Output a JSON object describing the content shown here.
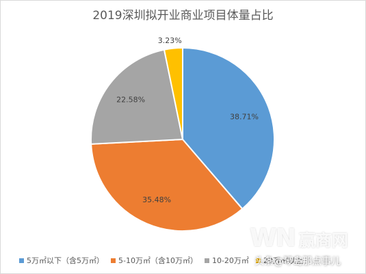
{
  "chart_data": {
    "type": "pie",
    "title": "2019深圳拟开业商业项目体量占比",
    "slices": [
      {
        "label": "5万㎡以下（含5万㎡）",
        "value": 38.71,
        "value_label": "38.71%",
        "color": "#5B9BD5"
      },
      {
        "label": "5-10万㎡（含10万㎡）",
        "value": 35.48,
        "value_label": "35.48%",
        "color": "#ED7D31"
      },
      {
        "label": "10-20万㎡",
        "value": 22.58,
        "value_label": "22.58%",
        "color": "#A5A5A5"
      },
      {
        "label": "20万㎡以上",
        "value": 3.23,
        "value_label": "3.23%",
        "color": "#FFC000"
      }
    ],
    "legend_position": "bottom"
  },
  "watermark": {
    "logo": "WN",
    "logo_cn": "赢商网",
    "text": "头条@琴岛那点事儿"
  }
}
